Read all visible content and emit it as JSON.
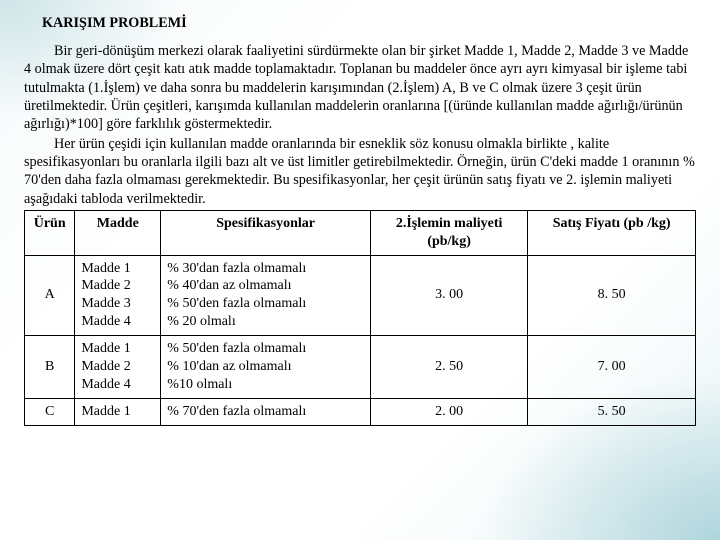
{
  "title": "KARIŞIM PROBLEMİ",
  "paragraph1": "Bir geri-dönüşüm merkezi olarak faaliyetini sürdürmekte olan bir şirket Madde 1, Madde 2, Madde 3 ve Madde 4 olmak üzere dört çeşit katı atık madde toplamaktadır. Toplanan bu maddeler önce ayrı ayrı kimyasal bir işleme tabi tutulmakta (1.İşlem) ve daha sonra bu maddelerin karışımından (2.İşlem) A, B ve C olmak üzere 3 çeşit ürün üretilmektedir. Ürün çeşitleri, karışımda kullanılan maddelerin oranlarına [(üründe kullanılan madde ağırlığı/ürünün ağırlığı)*100] göre farklılık göstermektedir.",
  "paragraph2": "Her ürün çeşidi için  kullanılan  madde oranlarında bir esneklik söz konusu olmakla birlikte , kalite spesifikasyonları bu oranlarla ilgili bazı alt ve üst limitler getirebilmektedir. Örneğin, ürün C'deki madde 1 oranının % 70'den daha fazla olmaması gerekmektedir. Bu spesifikasyonlar, her çeşit ürünün satış fiyatı ve 2. işlemin  maliyeti aşağıdaki tabloda verilmektedir.",
  "table": {
    "headers": {
      "urun": "Ürün",
      "madde": "Madde",
      "spec": "Spesifikasyonlar",
      "cost": "2.İşlemin maliyeti (pb/kg)",
      "price": "Satış Fiyatı (pb /kg)"
    },
    "rows": [
      {
        "urun": "A",
        "madde": [
          "Madde 1",
          "Madde 2",
          "Madde 3",
          "Madde 4"
        ],
        "spec": [
          "% 30'dan fazla olmamalı",
          "% 40'dan az olmamalı",
          "% 50'den fazla olmamalı",
          "% 20 olmalı"
        ],
        "cost": "3. 00",
        "price": "8. 50"
      },
      {
        "urun": "B",
        "madde": [
          "Madde 1",
          "Madde 2",
          "Madde 4"
        ],
        "spec": [
          "% 50'den fazla olmamalı",
          "% 10'dan az olmamalı",
          "%10 olmalı"
        ],
        "cost": "2. 50",
        "price": "7. 00"
      },
      {
        "urun": "C",
        "madde": [
          "Madde 1"
        ],
        "spec": [
          "% 70'den fazla olmamalı"
        ],
        "cost": "2. 00",
        "price": "5. 50"
      }
    ]
  }
}
